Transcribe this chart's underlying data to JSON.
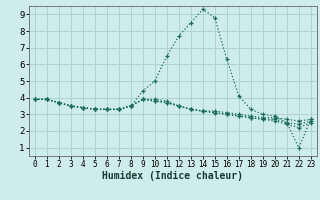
{
  "xlabel": "Humidex (Indice chaleur)",
  "ylabel": "",
  "xlim": [
    -0.5,
    23.5
  ],
  "ylim": [
    0.5,
    9.5
  ],
  "xticks": [
    0,
    1,
    2,
    3,
    4,
    5,
    6,
    7,
    8,
    9,
    10,
    11,
    12,
    13,
    14,
    15,
    16,
    17,
    18,
    19,
    20,
    21,
    22,
    23
  ],
  "yticks": [
    1,
    2,
    3,
    4,
    5,
    6,
    7,
    8,
    9
  ],
  "background_color": "#cdecea",
  "grid_color": "#aed4d0",
  "line_color": "#1a6b5a",
  "series": [
    [
      3.9,
      3.9,
      3.7,
      3.5,
      3.4,
      3.3,
      3.3,
      3.3,
      3.5,
      4.4,
      5.0,
      6.5,
      7.7,
      8.5,
      9.3,
      8.8,
      6.3,
      4.1,
      3.3,
      3.0,
      2.9,
      2.5,
      1.0,
      2.7
    ],
    [
      3.9,
      3.9,
      3.7,
      3.5,
      3.4,
      3.3,
      3.3,
      3.3,
      3.5,
      3.9,
      3.9,
      3.8,
      3.5,
      3.3,
      3.2,
      3.2,
      3.1,
      3.0,
      2.9,
      2.8,
      2.8,
      2.7,
      2.6,
      2.7
    ],
    [
      3.9,
      3.9,
      3.7,
      3.5,
      3.4,
      3.3,
      3.3,
      3.3,
      3.5,
      3.9,
      3.8,
      3.7,
      3.5,
      3.3,
      3.2,
      3.1,
      3.0,
      2.9,
      2.8,
      2.7,
      2.7,
      2.5,
      2.4,
      2.6
    ],
    [
      3.9,
      3.9,
      3.7,
      3.5,
      3.4,
      3.3,
      3.3,
      3.3,
      3.5,
      3.9,
      3.8,
      3.7,
      3.5,
      3.3,
      3.2,
      3.1,
      3.0,
      2.9,
      2.8,
      2.7,
      2.6,
      2.4,
      2.2,
      2.5
    ]
  ],
  "marker": "+"
}
